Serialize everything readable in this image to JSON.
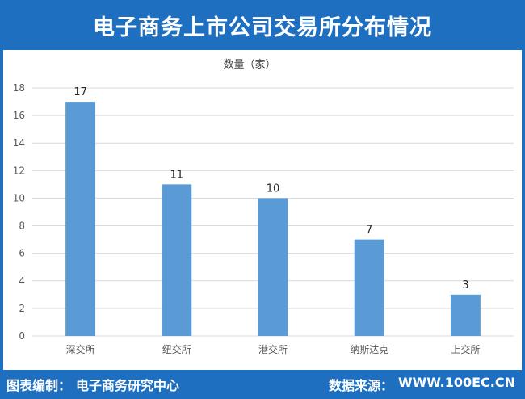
{
  "header": {
    "title": "电子商务上市公司交易所分布情况"
  },
  "footer": {
    "left_label": "图表编制：",
    "left_value": "电子商务研究中心",
    "right_label": "数据来源：",
    "right_value": "WWW.100EC.CN"
  },
  "colors": {
    "brand": "#1f6fc0",
    "bar": "#5b9bd5",
    "grid": "#d9d9d9"
  },
  "chart_data": {
    "type": "bar",
    "title": "数量（家）",
    "xlabel": "",
    "ylabel": "",
    "categories": [
      "深交所",
      "纽交所",
      "港交所",
      "纳斯达克",
      "上交所"
    ],
    "values": [
      17,
      11,
      10,
      7,
      3
    ],
    "ylim": [
      0,
      18
    ],
    "yticks": [
      0,
      2,
      4,
      6,
      8,
      10,
      12,
      14,
      16,
      18
    ],
    "grid": true,
    "legend": "none"
  }
}
